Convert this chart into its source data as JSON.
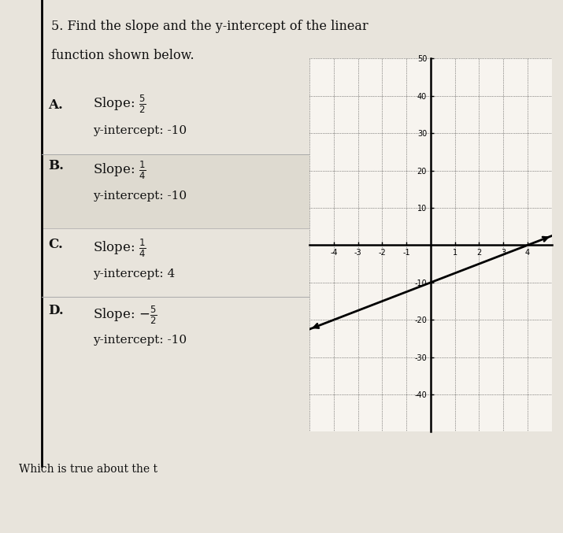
{
  "title_line1": "5. Find the slope and the y-intercept of the linear",
  "title_line2": "function shown below.",
  "options": [
    {
      "label": "A.",
      "slope_str": "\\frac{5}{2}",
      "yint": "-10"
    },
    {
      "label": "B.",
      "slope_str": "\\frac{1}{4}",
      "yint": "-10"
    },
    {
      "label": "C.",
      "slope_str": "\\frac{1}{4}",
      "yint": "4"
    },
    {
      "label": "D.",
      "slope_str": "-\\frac{5}{2}",
      "yint": "-10"
    }
  ],
  "graph": {
    "xlim": [
      -5,
      5
    ],
    "ylim": [
      -50,
      50
    ],
    "line_slope": 2.5,
    "line_yintercept": -10,
    "bg_color": "#e8e4dc",
    "paper_color": "#f4f1ec",
    "text_color": "#111111",
    "highlight_color": "#dedad0"
  },
  "footer_text": "Which is true about the t"
}
